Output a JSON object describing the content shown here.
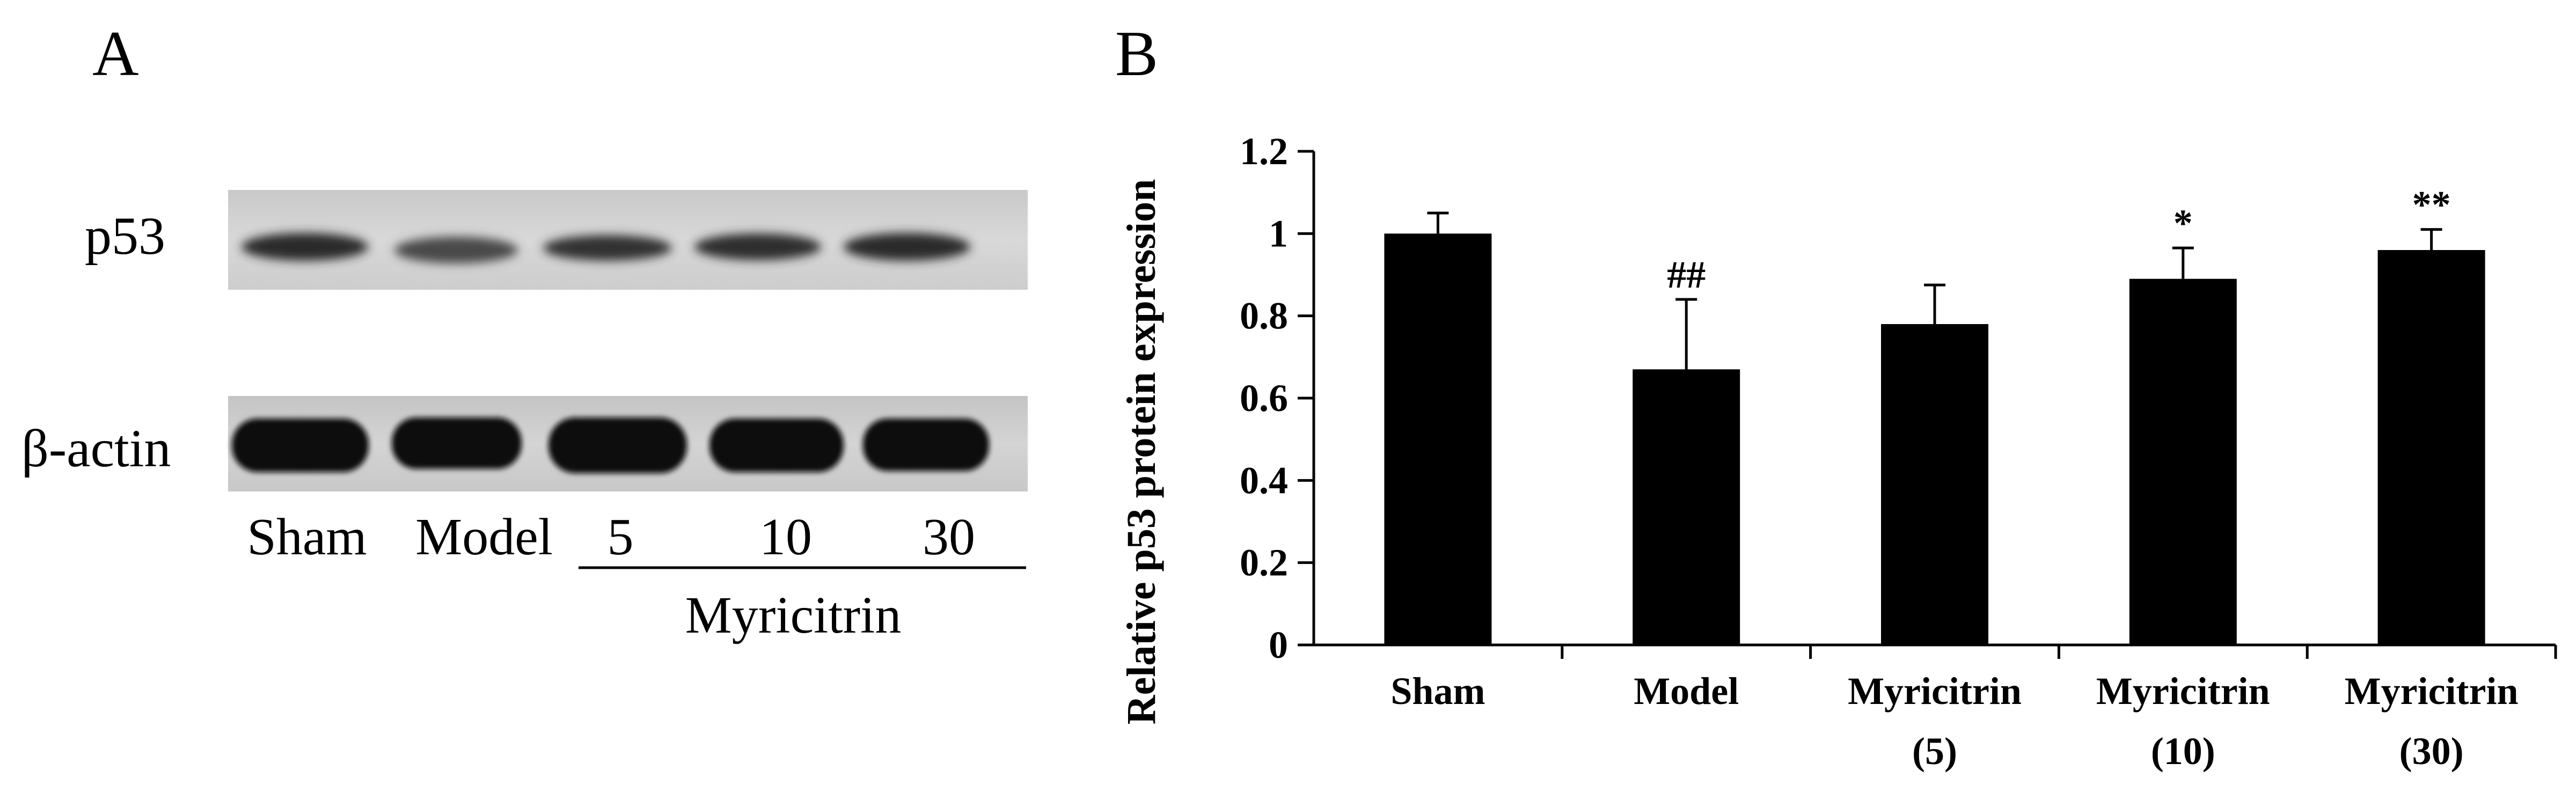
{
  "panel_a": {
    "letter": "A",
    "blot_labels": {
      "top": "p53",
      "bottom": "β-actin"
    },
    "lane_labels": [
      "Sham",
      "Model",
      "5",
      "10",
      "30"
    ],
    "group_label": "Myricitrin"
  },
  "panel_b": {
    "letter": "B"
  },
  "chart_data": {
    "type": "bar",
    "title": "",
    "xlabel": "",
    "ylabel": "Relative p53 protein expression",
    "ylim": [
      0,
      1.2
    ],
    "yticks": [
      "0",
      "0.2",
      "0.4",
      "0.6",
      "0.8",
      "1",
      "1.2"
    ],
    "categories": [
      [
        "Sham"
      ],
      [
        "Model"
      ],
      [
        "Myricitrin",
        "(5)"
      ],
      [
        "Myricitrin",
        "(10)"
      ],
      [
        "Myricitrin",
        "(30)"
      ]
    ],
    "values": [
      1.0,
      0.67,
      0.78,
      0.89,
      0.96
    ],
    "error": [
      0.05,
      0.17,
      0.095,
      0.075,
      0.05
    ],
    "annotations": [
      "",
      "##",
      "",
      "*",
      "**"
    ],
    "bar_color": "#000000",
    "grid": false
  }
}
